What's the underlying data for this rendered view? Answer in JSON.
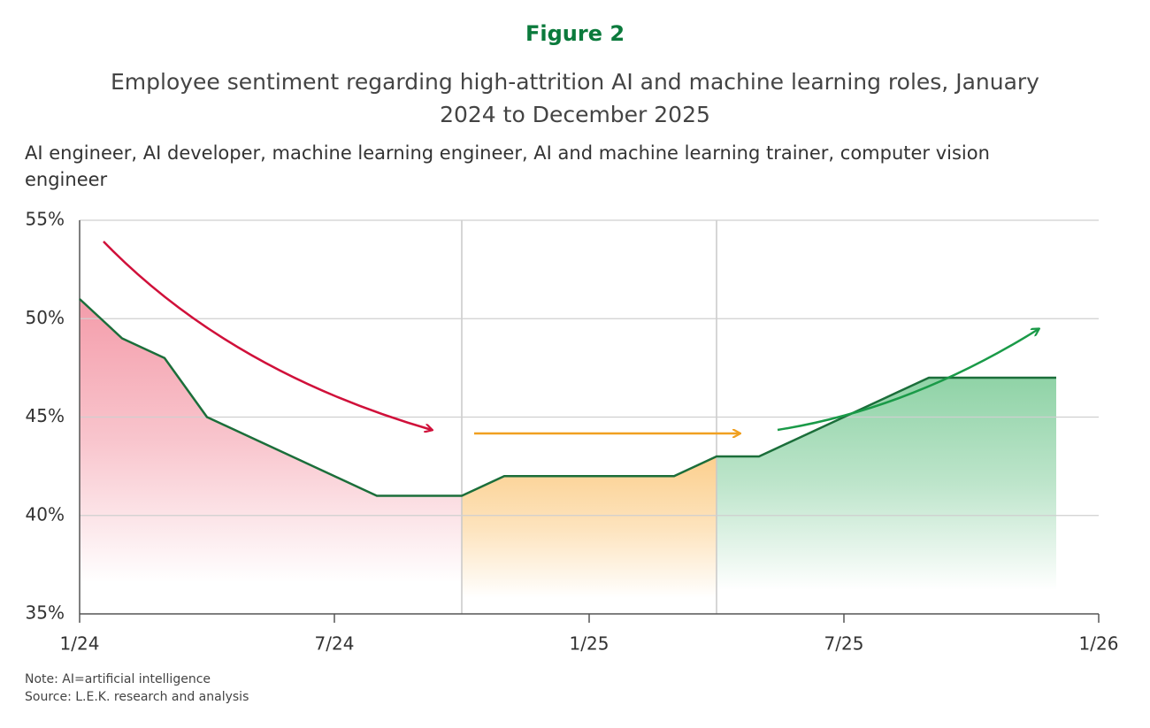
{
  "chart_data": {
    "type": "line",
    "figure_label": "Figure 2",
    "title": "Employee sentiment regarding high-attrition AI and machine learning roles, January 2024 to December 2025",
    "subtitle": "AI engineer, AI developer, machine learning engineer, AI and machine learning trainer, computer vision engineer",
    "note": "Note: AI=artificial intelligence",
    "source": "Source: L.E.K. research and analysis",
    "x": [
      0,
      1,
      2,
      3,
      4,
      5,
      6,
      7,
      8,
      9,
      10,
      11,
      12,
      13,
      14,
      15,
      16,
      17,
      18,
      19,
      20,
      21,
      22,
      23
    ],
    "series": [
      {
        "color": "#1b6e3a",
        "values": [
          51,
          49,
          48,
          45,
          44,
          43,
          42,
          41,
          41,
          41,
          42,
          42,
          42,
          42,
          42,
          43,
          43,
          44,
          45,
          46,
          47,
          47,
          47,
          47
        ]
      }
    ],
    "phases": [
      {
        "start": 0,
        "end": 9,
        "color": "#f28b9b"
      },
      {
        "start": 9,
        "end": 15,
        "color": "#fbc77a"
      },
      {
        "start": 15,
        "end": 23,
        "color": "#7ccb97"
      }
    ],
    "xlim": [
      0,
      24
    ],
    "xticks": [
      {
        "value": 0,
        "label": "1/24"
      },
      {
        "value": 6,
        "label": "7/24"
      },
      {
        "value": 12,
        "label": "1/25"
      },
      {
        "value": 18,
        "label": "7/25"
      },
      {
        "value": 24,
        "label": "1/26"
      }
    ],
    "ylim": [
      35,
      55
    ],
    "yticks": [
      {
        "value": 35,
        "label": "35%"
      },
      {
        "value": 40,
        "label": "40%"
      },
      {
        "value": 45,
        "label": "45%"
      },
      {
        "value": 50,
        "label": "50%"
      },
      {
        "value": 55,
        "label": "55%"
      }
    ],
    "grid": true
  }
}
